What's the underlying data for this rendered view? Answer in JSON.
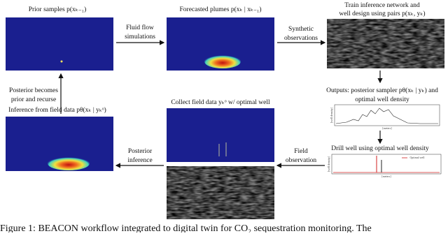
{
  "panels": {
    "prior": {
      "label": "Prior samples p(xₖ₋₁)"
    },
    "forecast": {
      "label": "Forecasted plumes p(xₖ | xₖ₋₁)"
    },
    "train": {
      "line1": "Train inference network and",
      "line2": "well design using pairs p(xₖ, yₖ)"
    },
    "outputs": {
      "line1": "Outputs: posterior sampler pθ(xₖ | yₖ) and",
      "line2": "optimal well density",
      "y_axis": "[well density]",
      "x_axis": "[meters]"
    },
    "drill": {
      "label": "Drill well using optimal well density",
      "y_axis": "[well density]",
      "x_axis": "[meters]",
      "legend": "Optimal well"
    },
    "collect": {
      "label": "Collect field data yₖᵒ w/ optimal well"
    },
    "inference": {
      "label": "Inference from field data pθ(xₖ | yₖᵒ)"
    }
  },
  "arrows": {
    "fluid": {
      "line1": "Fluid flow",
      "line2": "simulations"
    },
    "synthetic": {
      "line1": "Synthetic",
      "line2": "observations"
    },
    "field": {
      "line1": "Field",
      "line2": "observation"
    },
    "posterior": {
      "line1": "Posterior",
      "line2": "inference"
    },
    "recurse": {
      "line1": "Posterior becomes",
      "line2": "prior and recurse"
    }
  },
  "caption": "Figure 1: BEACON workflow integrated to digital twin for CO₂ sequestration monitoring. The"
}
